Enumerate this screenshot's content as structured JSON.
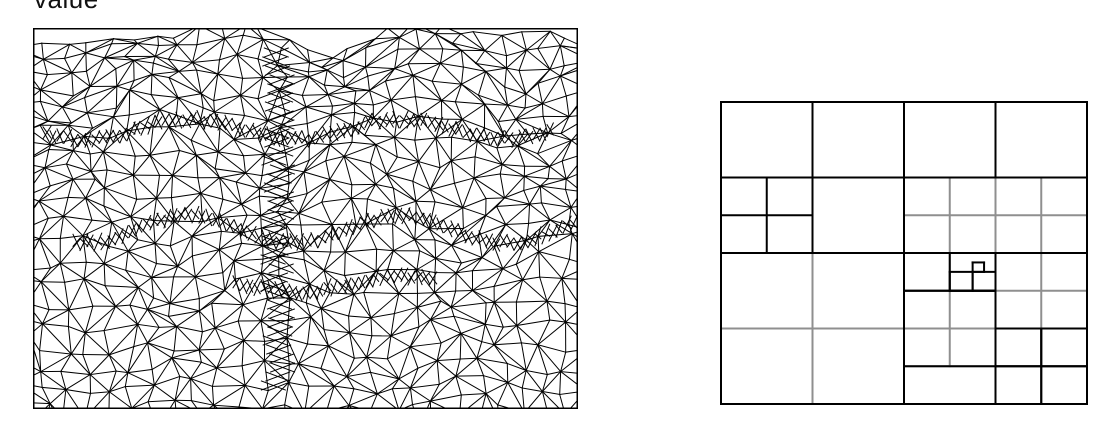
{
  "top_text": "value",
  "colors": {
    "background": "#ffffff",
    "frame": "#000000",
    "mesh_line": "#000000",
    "quad_dark": "#000000",
    "quad_gray": "#8f8f8f"
  },
  "figures": {
    "left": {
      "name": "terrain-triangle-mesh"
    },
    "right": {
      "name": "quadtree-subdivision"
    }
  }
}
